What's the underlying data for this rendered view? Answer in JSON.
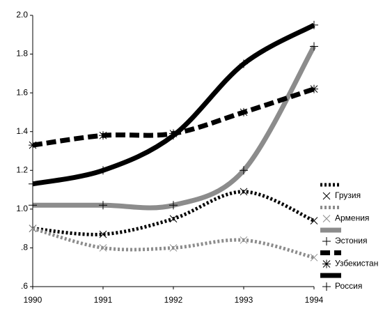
{
  "chart_data": {
    "type": "line",
    "x": [
      1990,
      1991,
      1992,
      1993,
      1994
    ],
    "xlim": [
      1990,
      1994
    ],
    "xticks": [
      1990,
      1991,
      1992,
      1993,
      1994
    ],
    "ylim": [
      0.6,
      2.0
    ],
    "yticks": [
      {
        "value": 0.6,
        "label": ".6"
      },
      {
        "value": 0.8,
        "label": ".8"
      },
      {
        "value": 1.0,
        "label": "1.0"
      },
      1.2,
      1.4,
      1.6,
      1.8,
      {
        "value": 2.0,
        "label": "2.0"
      }
    ],
    "legend": "right",
    "series": [
      {
        "name": "Грузия",
        "color": "#000000",
        "style": "dotted",
        "marker": "x",
        "values": [
          0.9,
          0.87,
          0.95,
          1.09,
          0.94
        ]
      },
      {
        "name": "Армения",
        "color": "#8c8c8c",
        "style": "dotted",
        "marker": "x",
        "values": [
          0.9,
          0.8,
          0.8,
          0.84,
          0.75
        ]
      },
      {
        "name": "Эстония",
        "color": "#8c8c8c",
        "style": "solid",
        "marker": "+",
        "values": [
          1.02,
          1.02,
          1.02,
          1.2,
          1.84
        ]
      },
      {
        "name": "Узбекистан",
        "color": "#000000",
        "style": "dashed",
        "marker": "*",
        "values": [
          1.33,
          1.38,
          1.39,
          1.5,
          1.62
        ]
      },
      {
        "name": "Россия",
        "color": "#000000",
        "style": "solid",
        "marker": "+",
        "values": [
          1.13,
          1.2,
          1.38,
          1.75,
          1.95
        ]
      }
    ]
  }
}
